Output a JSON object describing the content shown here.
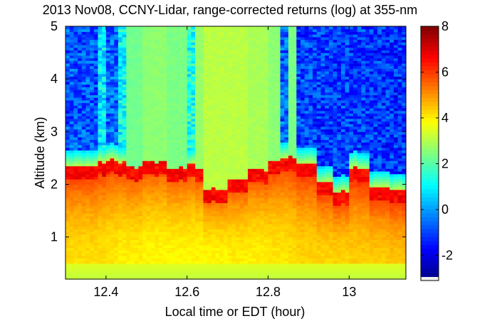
{
  "chart_data": {
    "type": "heatmap",
    "title": "2013 Nov08, CCNY-Lidar, range-corrected returns (log) at 355-nm",
    "xlabel": "Local time or EDT (hour)",
    "ylabel": "Altitude (km)",
    "xlim": [
      12.3,
      13.14
    ],
    "ylim": [
      0.2,
      5.0
    ],
    "x_ticks": [
      12.4,
      12.6,
      12.8,
      13.0
    ],
    "x_tick_labels": [
      "12.4",
      "12.6",
      "12.8",
      "13"
    ],
    "y_ticks": [
      1,
      2,
      3,
      4,
      5
    ],
    "y_tick_labels": [
      "1",
      "2",
      "3",
      "4",
      "5"
    ],
    "colorbar": {
      "range": [
        -3.1,
        8
      ],
      "ticks": [
        8,
        6,
        4,
        2,
        0,
        -2
      ],
      "tick_labels": [
        "8",
        "6",
        "4",
        "2",
        "0",
        "-2"
      ],
      "colormap": "jet"
    },
    "columns": [
      {
        "x_start": 12.3,
        "x_end": 12.38,
        "aerosol_top_km": 2.35,
        "above_value": -0.8,
        "bottom_value": 4.2
      },
      {
        "x_start": 12.38,
        "x_end": 12.4,
        "aerosol_top_km": 2.45,
        "above_value": 0.8,
        "bottom_value": 4.2
      },
      {
        "x_start": 12.4,
        "x_end": 12.43,
        "aerosol_top_km": 2.5,
        "above_value": -0.6,
        "bottom_value": 4.1
      },
      {
        "x_start": 12.43,
        "x_end": 12.45,
        "aerosol_top_km": 2.45,
        "above_value": 1.0,
        "bottom_value": 4.0
      },
      {
        "x_start": 12.45,
        "x_end": 12.49,
        "aerosol_top_km": 2.35,
        "above_value": 2.3,
        "bottom_value": 4.0
      },
      {
        "x_start": 12.49,
        "x_end": 12.55,
        "aerosol_top_km": 2.45,
        "above_value": 2.6,
        "bottom_value": 3.9
      },
      {
        "x_start": 12.55,
        "x_end": 12.6,
        "aerosol_top_km": 2.3,
        "above_value": 2.4,
        "bottom_value": 3.9
      },
      {
        "x_start": 12.6,
        "x_end": 12.62,
        "aerosol_top_km": 2.4,
        "above_value": 1.4,
        "bottom_value": 3.9
      },
      {
        "x_start": 12.62,
        "x_end": 12.64,
        "aerosol_top_km": 2.3,
        "above_value": 2.7,
        "bottom_value": 3.9
      },
      {
        "x_start": 12.64,
        "x_end": 12.7,
        "aerosol_top_km": 1.9,
        "above_value": 3.1,
        "bottom_value": 3.9
      },
      {
        "x_start": 12.7,
        "x_end": 12.75,
        "aerosol_top_km": 2.1,
        "above_value": 3.1,
        "bottom_value": 4.0
      },
      {
        "x_start": 12.75,
        "x_end": 12.8,
        "aerosol_top_km": 2.3,
        "above_value": 2.9,
        "bottom_value": 4.0
      },
      {
        "x_start": 12.8,
        "x_end": 12.83,
        "aerosol_top_km": 2.45,
        "above_value": 2.6,
        "bottom_value": 4.1
      },
      {
        "x_start": 12.83,
        "x_end": 12.85,
        "aerosol_top_km": 2.5,
        "above_value": -0.6,
        "bottom_value": 4.1
      },
      {
        "x_start": 12.85,
        "x_end": 12.87,
        "aerosol_top_km": 2.5,
        "above_value": 2.4,
        "bottom_value": 4.2
      },
      {
        "x_start": 12.87,
        "x_end": 12.92,
        "aerosol_top_km": 2.4,
        "above_value": -1.0,
        "bottom_value": 4.3
      },
      {
        "x_start": 12.92,
        "x_end": 12.96,
        "aerosol_top_km": 2.05,
        "above_value": -1.1,
        "bottom_value": 4.3
      },
      {
        "x_start": 12.96,
        "x_end": 12.98,
        "aerosol_top_km": 1.85,
        "above_value": -1.1,
        "bottom_value": 4.3
      },
      {
        "x_start": 12.98,
        "x_end": 13.0,
        "aerosol_top_km": 1.9,
        "above_value": -1.0,
        "bottom_value": 4.3
      },
      {
        "x_start": 13.0,
        "x_end": 13.02,
        "aerosol_top_km": 2.35,
        "above_value": -1.1,
        "bottom_value": 4.4
      },
      {
        "x_start": 13.02,
        "x_end": 13.05,
        "aerosol_top_km": 2.3,
        "above_value": -1.1,
        "bottom_value": 4.4
      },
      {
        "x_start": 13.05,
        "x_end": 13.1,
        "aerosol_top_km": 1.95,
        "above_value": -1.2,
        "bottom_value": 4.4
      },
      {
        "x_start": 13.1,
        "x_end": 13.14,
        "aerosol_top_km": 1.9,
        "above_value": -1.2,
        "bottom_value": 4.5
      }
    ]
  }
}
